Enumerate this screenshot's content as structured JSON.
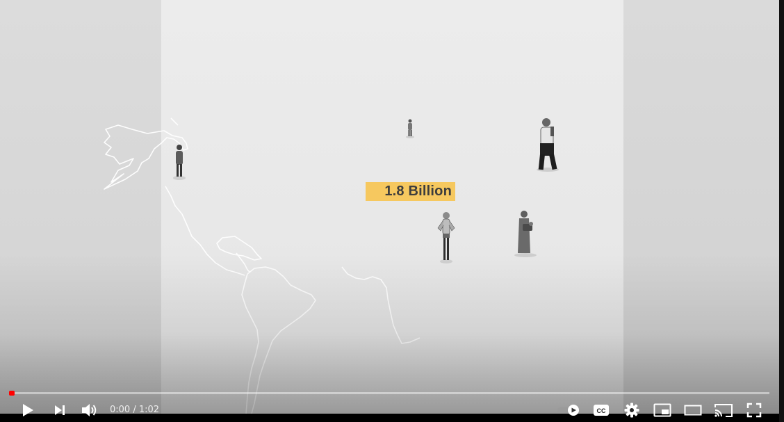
{
  "video": {
    "overlay_label": "1.8 Billion",
    "label_color": "#f6c85f"
  },
  "player": {
    "progress_percent": 0.6,
    "current_time": "0:00",
    "separator": " / ",
    "duration": "1:02",
    "accent_color": "#ff0000"
  },
  "controls": {
    "play_icon": "play-icon",
    "next_icon": "next-icon",
    "volume_icon": "volume-icon",
    "autoplay_icon": "autoplay-toggle-icon",
    "captions_label": "CC",
    "settings_icon": "gear-icon",
    "miniplayer_icon": "miniplayer-icon",
    "theater_icon": "theater-mode-icon",
    "cast_icon": "cast-icon",
    "fullscreen_icon": "fullscreen-icon"
  }
}
